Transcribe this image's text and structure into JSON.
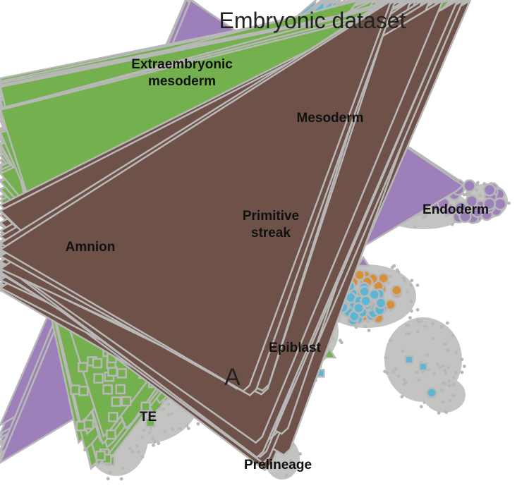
{
  "chart_data": {
    "type": "scatter",
    "title": "Embryonic dataset",
    "xlabel": "",
    "ylabel": "",
    "annotation": "A",
    "colors": {
      "background_cells": "#c3c3c1",
      "Extraembryonic mesoderm": "#b24a3c",
      "Mesoderm": "#b865a6",
      "Endoderm": "#9d80ba",
      "Amnion": "#e06f66",
      "Primitive streak": "#d98f3a",
      "Epiblast": "#5bb6d6",
      "TE": "#75b04e",
      "Prelineage": "#6e5148"
    },
    "series": [
      {
        "name": "Extraembryonic\nmesoderm",
        "shape": "circle"
      },
      {
        "name": "Mesoderm",
        "shape": "circle"
      },
      {
        "name": "Endoderm",
        "shape": "circle+triangle"
      },
      {
        "name": "Primitive\nstreak",
        "shape": "circle"
      },
      {
        "name": "Amnion",
        "shape": "circle"
      },
      {
        "name": "Epiblast",
        "shape": "triangle+square"
      },
      {
        "name": "TE",
        "shape": "triangle+square"
      },
      {
        "name": "Prelineage",
        "shape": "triangle"
      }
    ]
  }
}
